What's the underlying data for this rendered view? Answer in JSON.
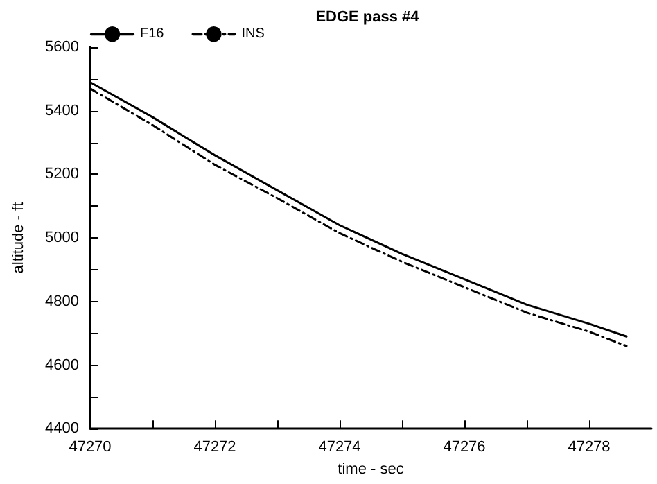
{
  "chart_data": {
    "type": "line",
    "title": "EDGE pass #4",
    "xlabel": "time - sec",
    "ylabel": "altitude - ft",
    "xlim": [
      47270,
      47279
    ],
    "ylim": [
      4400,
      5600
    ],
    "xticks": [
      47270,
      {
        "value": 47271,
        "label": null
      },
      47272,
      {
        "value": 47273,
        "label": null
      },
      47274,
      {
        "value": 47275,
        "label": null
      },
      47276,
      {
        "value": 47277,
        "label": null
      },
      47278
    ],
    "yticks": [
      4400,
      {
        "value": 4500,
        "label": null
      },
      4600,
      {
        "value": 4700,
        "label": null
      },
      4800,
      {
        "value": 4900,
        "label": null
      },
      5000,
      {
        "value": 5100,
        "label": null
      },
      5200,
      {
        "value": 5300,
        "label": null
      },
      5400,
      {
        "value": 5500,
        "label": null
      },
      5600
    ],
    "grid": false,
    "legend": "top left",
    "marker": "none",
    "series": [
      {
        "name": "F16",
        "color": "#000000",
        "line_style": "solid",
        "x": [
          47270,
          47271,
          47272,
          47273,
          47274,
          47275,
          47276,
          47277,
          47278,
          47278.6
        ],
        "values": [
          5490,
          5380,
          5260,
          5150,
          5040,
          4950,
          4870,
          4790,
          4730,
          4690
        ]
      },
      {
        "name": "INS",
        "color": "#000000",
        "line_style": "dashed",
        "x": [
          47270,
          47271,
          47272,
          47273,
          47274,
          47275,
          47276,
          47277,
          47278,
          47278.6
        ],
        "values": [
          5470,
          5355,
          5230,
          5125,
          5015,
          4925,
          4845,
          4765,
          4705,
          4660
        ]
      }
    ]
  }
}
